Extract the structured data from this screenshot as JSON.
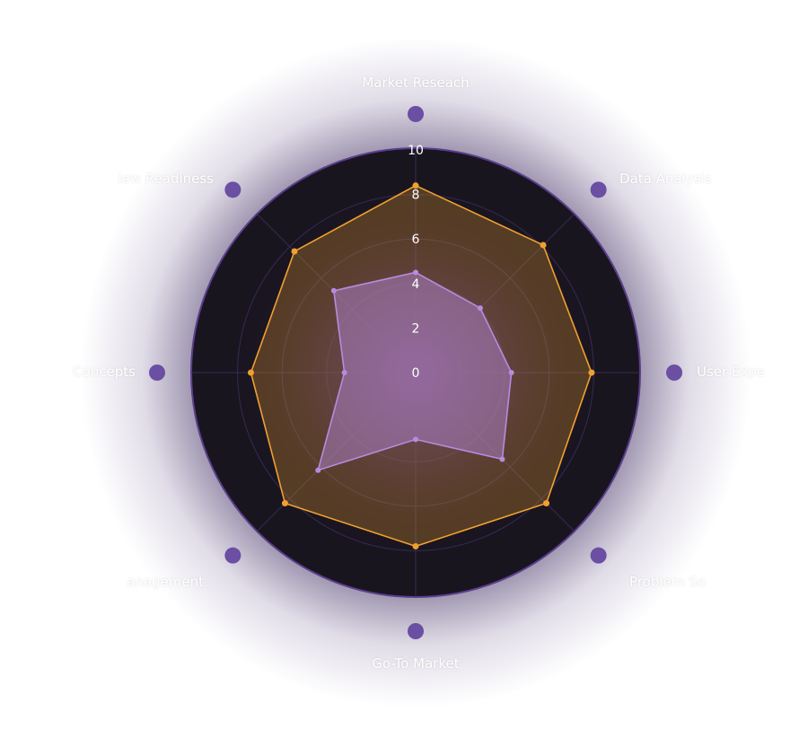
{
  "chart_data": {
    "type": "radar",
    "axes": [
      "Market Reseach",
      "Data Analysis",
      "User Expe",
      "Problem So",
      "Go-To Market",
      "anagement",
      "Concepts",
      "iew Readiness"
    ],
    "radial_ticks": [
      "0",
      "2",
      "4",
      "6",
      "8",
      "10"
    ],
    "rmax": 10,
    "series": [
      {
        "values": [
          8.4,
          8.1,
          7.9,
          8.3,
          7.8,
          8.3,
          7.4,
          7.7
        ],
        "color": "#f0a030"
      },
      {
        "values": [
          4.5,
          4.1,
          4.3,
          5.5,
          3.0,
          6.2,
          3.2,
          5.2
        ],
        "color": "#b88be0"
      }
    ]
  },
  "colors": {
    "plot_bg": "#19151f",
    "grid": "#3d2f60",
    "outer_ring": "#5b3f8e",
    "marker": "#6a4fa3"
  }
}
